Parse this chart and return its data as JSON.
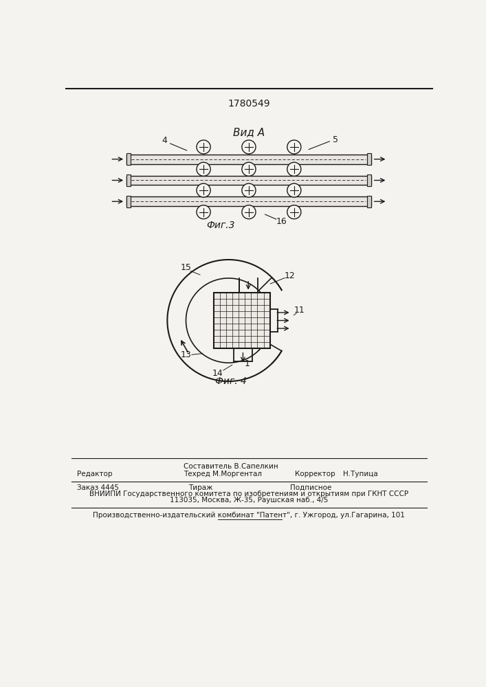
{
  "patent_number": "1780549",
  "fig3_label": "Фиг.3",
  "fig4_label": "Фиг. 4",
  "vid_a_label": "Вид A",
  "background_color": "#f5f3f0",
  "line_color": "#1a1a1a",
  "footer_line1_left": "Редактор",
  "footer_line1_center1": "Составитель В.Сапелкин",
  "footer_line1_center2": "Техред М.Моргентал",
  "footer_line1_right1": "Корректор",
  "footer_line1_right2": "Н.Тупица",
  "footer_line2_left": "Заказ 4445",
  "footer_line2_center": "Тираж",
  "footer_line2_right": "Подписное",
  "footer_line3": "ВНИИПИ Государственного комитета по изобретениям и открытиям при ГКНТ СССР",
  "footer_line4": "113035, Москва, Ж-35, Раушская наб., 4/5",
  "footer_line5": "Производственно-издательский комбинат \"Патент\", г. Ужгород, ул.Гагарина, 101"
}
